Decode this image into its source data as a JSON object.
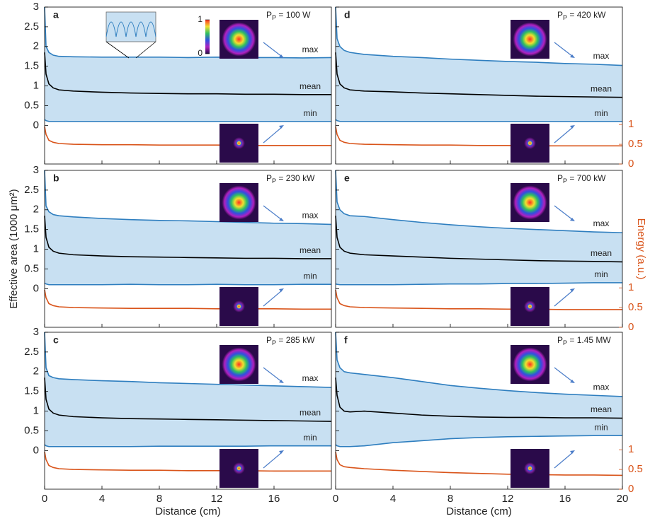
{
  "chart_data": [
    {
      "type": "line",
      "panel": "a",
      "annotation": [
        "P",
        "P",
        " = 100 W"
      ],
      "x": [
        0,
        0.1,
        0.3,
        0.6,
        1,
        2,
        4,
        6,
        8,
        10,
        12,
        14,
        16,
        18,
        20
      ],
      "series": [
        {
          "name": "max",
          "color": "#2e7ebf",
          "values": [
            3,
            2.0,
            1.85,
            1.78,
            1.75,
            1.74,
            1.73,
            1.73,
            1.73,
            1.72,
            1.73,
            1.72,
            1.72,
            1.71,
            1.72
          ]
        },
        {
          "name": "mean",
          "color": "#000000",
          "values": [
            1.85,
            1.3,
            1.05,
            0.95,
            0.9,
            0.87,
            0.84,
            0.82,
            0.81,
            0.8,
            0.8,
            0.79,
            0.79,
            0.78,
            0.78
          ]
        },
        {
          "name": "min",
          "color": "#2e7ebf",
          "values": [
            0.15,
            0.12,
            0.1,
            0.1,
            0.1,
            0.1,
            0.1,
            0.1,
            0.1,
            0.1,
            0.1,
            0.1,
            0.1,
            0.1,
            0.1
          ]
        }
      ],
      "energy": {
        "color": "#d9541a",
        "axis": "y2",
        "values": [
          0.95,
          0.75,
          0.6,
          0.55,
          0.52,
          0.5,
          0.49,
          0.49,
          0.48,
          0.48,
          0.48,
          0.47,
          0.47,
          0.47,
          0.47
        ]
      },
      "fill_color": "#c8e0f2",
      "colorbar": {
        "ticks": [
          0,
          1
        ]
      },
      "xlim": [
        0,
        20
      ],
      "xticks": [
        0,
        4,
        8,
        12,
        16
      ],
      "show_xtick_labels": false,
      "ylim": [
        -0.98,
        3
      ],
      "yticks": [
        0,
        0.5,
        1,
        1.5,
        2,
        2.5,
        3
      ],
      "show_ytick_labels": true,
      "y2lim": [
        0,
        3.98
      ]
    },
    {
      "type": "line",
      "panel": "b",
      "annotation": [
        "P",
        "P",
        " = 230 kW"
      ],
      "ylabel": "Effective area (1000 μm²)",
      "x": [
        0,
        0.1,
        0.3,
        0.6,
        1,
        2,
        4,
        6,
        8,
        10,
        12,
        14,
        16,
        18,
        20
      ],
      "series": [
        {
          "name": "max",
          "color": "#2e7ebf",
          "values": [
            3,
            2.1,
            1.95,
            1.88,
            1.85,
            1.82,
            1.78,
            1.75,
            1.73,
            1.72,
            1.7,
            1.68,
            1.66,
            1.65,
            1.63
          ]
        },
        {
          "name": "mean",
          "color": "#000000",
          "values": [
            1.85,
            1.3,
            1.05,
            0.95,
            0.9,
            0.86,
            0.83,
            0.81,
            0.8,
            0.79,
            0.78,
            0.77,
            0.77,
            0.76,
            0.76
          ]
        },
        {
          "name": "min",
          "color": "#2e7ebf",
          "values": [
            0.14,
            0.12,
            0.1,
            0.1,
            0.1,
            0.1,
            0.1,
            0.11,
            0.1,
            0.1,
            0.11,
            0.1,
            0.1,
            0.11,
            0.11
          ]
        }
      ],
      "energy": {
        "color": "#d9541a",
        "axis": "y2",
        "values": [
          0.95,
          0.75,
          0.6,
          0.55,
          0.52,
          0.5,
          0.49,
          0.48,
          0.48,
          0.48,
          0.47,
          0.47,
          0.47,
          0.46,
          0.46
        ]
      },
      "fill_color": "#c8e0f2",
      "xlim": [
        0,
        20
      ],
      "xticks": [
        0,
        4,
        8,
        12,
        16
      ],
      "show_xtick_labels": false,
      "ylim": [
        -0.98,
        3
      ],
      "yticks": [
        0,
        0.5,
        1,
        1.5,
        2,
        2.5,
        3
      ],
      "show_ytick_labels": true,
      "y2lim": [
        0,
        3.98
      ]
    },
    {
      "type": "line",
      "panel": "c",
      "annotation": [
        "P",
        "P",
        " = 285 kW"
      ],
      "xlabel": "Distance (cm)",
      "x": [
        0,
        0.1,
        0.3,
        0.6,
        1,
        2,
        4,
        6,
        8,
        10,
        12,
        14,
        16,
        18,
        20
      ],
      "series": [
        {
          "name": "max",
          "color": "#2e7ebf",
          "values": [
            3,
            2.1,
            1.9,
            1.85,
            1.82,
            1.8,
            1.77,
            1.75,
            1.72,
            1.7,
            1.68,
            1.66,
            1.64,
            1.62,
            1.6
          ]
        },
        {
          "name": "mean",
          "color": "#000000",
          "values": [
            1.85,
            1.3,
            1.05,
            0.95,
            0.9,
            0.86,
            0.83,
            0.81,
            0.8,
            0.79,
            0.78,
            0.77,
            0.76,
            0.75,
            0.74
          ]
        },
        {
          "name": "min",
          "color": "#2e7ebf",
          "values": [
            0.15,
            0.12,
            0.1,
            0.1,
            0.1,
            0.1,
            0.1,
            0.1,
            0.11,
            0.11,
            0.11,
            0.11,
            0.12,
            0.12,
            0.12
          ]
        }
      ],
      "energy": {
        "color": "#d9541a",
        "axis": "y2",
        "values": [
          0.95,
          0.75,
          0.6,
          0.55,
          0.52,
          0.5,
          0.49,
          0.48,
          0.48,
          0.47,
          0.47,
          0.47,
          0.46,
          0.46,
          0.46
        ]
      },
      "fill_color": "#c8e0f2",
      "xlim": [
        0,
        20
      ],
      "xticks": [
        0,
        4,
        8,
        12,
        16
      ],
      "show_xtick_labels": true,
      "ylim": [
        -0.98,
        3
      ],
      "yticks": [
        0,
        0.5,
        1,
        1.5,
        2,
        2.5,
        3
      ],
      "show_ytick_labels": true,
      "y2lim": [
        0,
        3.98
      ]
    },
    {
      "type": "line",
      "panel": "d",
      "annotation": [
        "P",
        "P",
        " = 420 kW"
      ],
      "x": [
        0,
        0.1,
        0.3,
        0.6,
        1,
        2,
        4,
        6,
        8,
        10,
        12,
        14,
        16,
        18,
        20
      ],
      "series": [
        {
          "name": "max",
          "color": "#2e7ebf",
          "values": [
            3,
            2.2,
            2.0,
            1.9,
            1.85,
            1.8,
            1.75,
            1.72,
            1.68,
            1.65,
            1.62,
            1.6,
            1.57,
            1.55,
            1.52
          ]
        },
        {
          "name": "mean",
          "color": "#000000",
          "values": [
            1.85,
            1.3,
            1.05,
            0.95,
            0.9,
            0.87,
            0.85,
            0.82,
            0.8,
            0.78,
            0.76,
            0.74,
            0.73,
            0.72,
            0.71
          ]
        },
        {
          "name": "min",
          "color": "#2e7ebf",
          "values": [
            0.15,
            0.12,
            0.1,
            0.1,
            0.1,
            0.1,
            0.1,
            0.1,
            0.1,
            0.1,
            0.1,
            0.1,
            0.1,
            0.1,
            0.1
          ]
        }
      ],
      "energy": {
        "color": "#d9541a",
        "axis": "y2",
        "values": [
          0.95,
          0.75,
          0.6,
          0.55,
          0.52,
          0.5,
          0.49,
          0.48,
          0.48,
          0.47,
          0.47,
          0.46,
          0.46,
          0.46,
          0.46
        ]
      },
      "fill_color": "#c8e0f2",
      "xlim": [
        0,
        20
      ],
      "xticks": [
        0,
        4,
        8,
        12,
        16,
        20
      ],
      "show_xtick_labels": false,
      "ylim": [
        -0.98,
        3
      ],
      "yticks": [
        0,
        0.5,
        1,
        1.5,
        2,
        2.5,
        3
      ],
      "show_ytick_labels": false,
      "y2lim": [
        0,
        3.98
      ],
      "y2ticks": [
        0,
        0.5,
        1
      ]
    },
    {
      "type": "line",
      "panel": "e",
      "annotation": [
        "P",
        "P",
        " = 700 kW"
      ],
      "y2label": "Energy (a.u.)",
      "x": [
        0,
        0.1,
        0.3,
        0.6,
        1,
        2,
        4,
        6,
        8,
        10,
        12,
        14,
        16,
        18,
        20
      ],
      "series": [
        {
          "name": "max",
          "color": "#2e7ebf",
          "values": [
            3,
            2.2,
            2.0,
            1.9,
            1.85,
            1.83,
            1.75,
            1.68,
            1.62,
            1.57,
            1.53,
            1.5,
            1.47,
            1.44,
            1.42
          ]
        },
        {
          "name": "mean",
          "color": "#000000",
          "values": [
            1.85,
            1.3,
            1.05,
            0.95,
            0.9,
            0.86,
            0.83,
            0.8,
            0.77,
            0.75,
            0.73,
            0.71,
            0.7,
            0.69,
            0.68
          ]
        },
        {
          "name": "min",
          "color": "#2e7ebf",
          "values": [
            0.12,
            0.11,
            0.1,
            0.1,
            0.1,
            0.1,
            0.1,
            0.11,
            0.12,
            0.12,
            0.13,
            0.13,
            0.14,
            0.15,
            0.15
          ]
        }
      ],
      "energy": {
        "color": "#d9541a",
        "axis": "y2",
        "values": [
          0.95,
          0.75,
          0.6,
          0.55,
          0.52,
          0.5,
          0.49,
          0.48,
          0.47,
          0.47,
          0.46,
          0.46,
          0.45,
          0.45,
          0.45
        ]
      },
      "fill_color": "#c8e0f2",
      "xlim": [
        0,
        20
      ],
      "xticks": [
        0,
        4,
        8,
        12,
        16,
        20
      ],
      "show_xtick_labels": false,
      "ylim": [
        -0.98,
        3
      ],
      "yticks": [
        0,
        0.5,
        1,
        1.5,
        2,
        2.5,
        3
      ],
      "show_ytick_labels": false,
      "y2lim": [
        0,
        3.98
      ],
      "y2ticks": [
        0,
        0.5,
        1
      ]
    },
    {
      "type": "line",
      "panel": "f",
      "annotation": [
        "P",
        "P",
        " = 1.45 MW"
      ],
      "xlabel": "Distance (cm)",
      "x": [
        0,
        0.1,
        0.3,
        0.6,
        1,
        2,
        4,
        6,
        8,
        10,
        12,
        14,
        16,
        18,
        20
      ],
      "series": [
        {
          "name": "max",
          "color": "#2e7ebf",
          "values": [
            3,
            2.3,
            2.1,
            2.0,
            1.97,
            1.93,
            1.85,
            1.75,
            1.65,
            1.58,
            1.52,
            1.47,
            1.43,
            1.4,
            1.37
          ]
        },
        {
          "name": "mean",
          "color": "#000000",
          "values": [
            1.85,
            1.4,
            1.1,
            1.0,
            0.98,
            1.0,
            0.95,
            0.9,
            0.87,
            0.85,
            0.84,
            0.84,
            0.83,
            0.83,
            0.82
          ]
        },
        {
          "name": "min",
          "color": "#2e7ebf",
          "values": [
            0.15,
            0.12,
            0.1,
            0.1,
            0.1,
            0.12,
            0.2,
            0.25,
            0.3,
            0.33,
            0.35,
            0.36,
            0.37,
            0.38,
            0.38
          ]
        }
      ],
      "energy": {
        "color": "#d9541a",
        "axis": "y2",
        "values": [
          0.95,
          0.75,
          0.62,
          0.57,
          0.55,
          0.52,
          0.48,
          0.45,
          0.42,
          0.4,
          0.38,
          0.37,
          0.36,
          0.36,
          0.35
        ]
      },
      "fill_color": "#c8e0f2",
      "xlim": [
        0,
        20
      ],
      "xticks": [
        0,
        4,
        8,
        12,
        16,
        20
      ],
      "show_xtick_labels": true,
      "ylim": [
        -0.98,
        3
      ],
      "yticks": [
        0,
        0.5,
        1,
        1.5,
        2,
        2.5,
        3
      ],
      "show_ytick_labels": false,
      "y2lim": [
        0,
        3.98
      ],
      "y2ticks": [
        0,
        0.5,
        1
      ]
    }
  ]
}
